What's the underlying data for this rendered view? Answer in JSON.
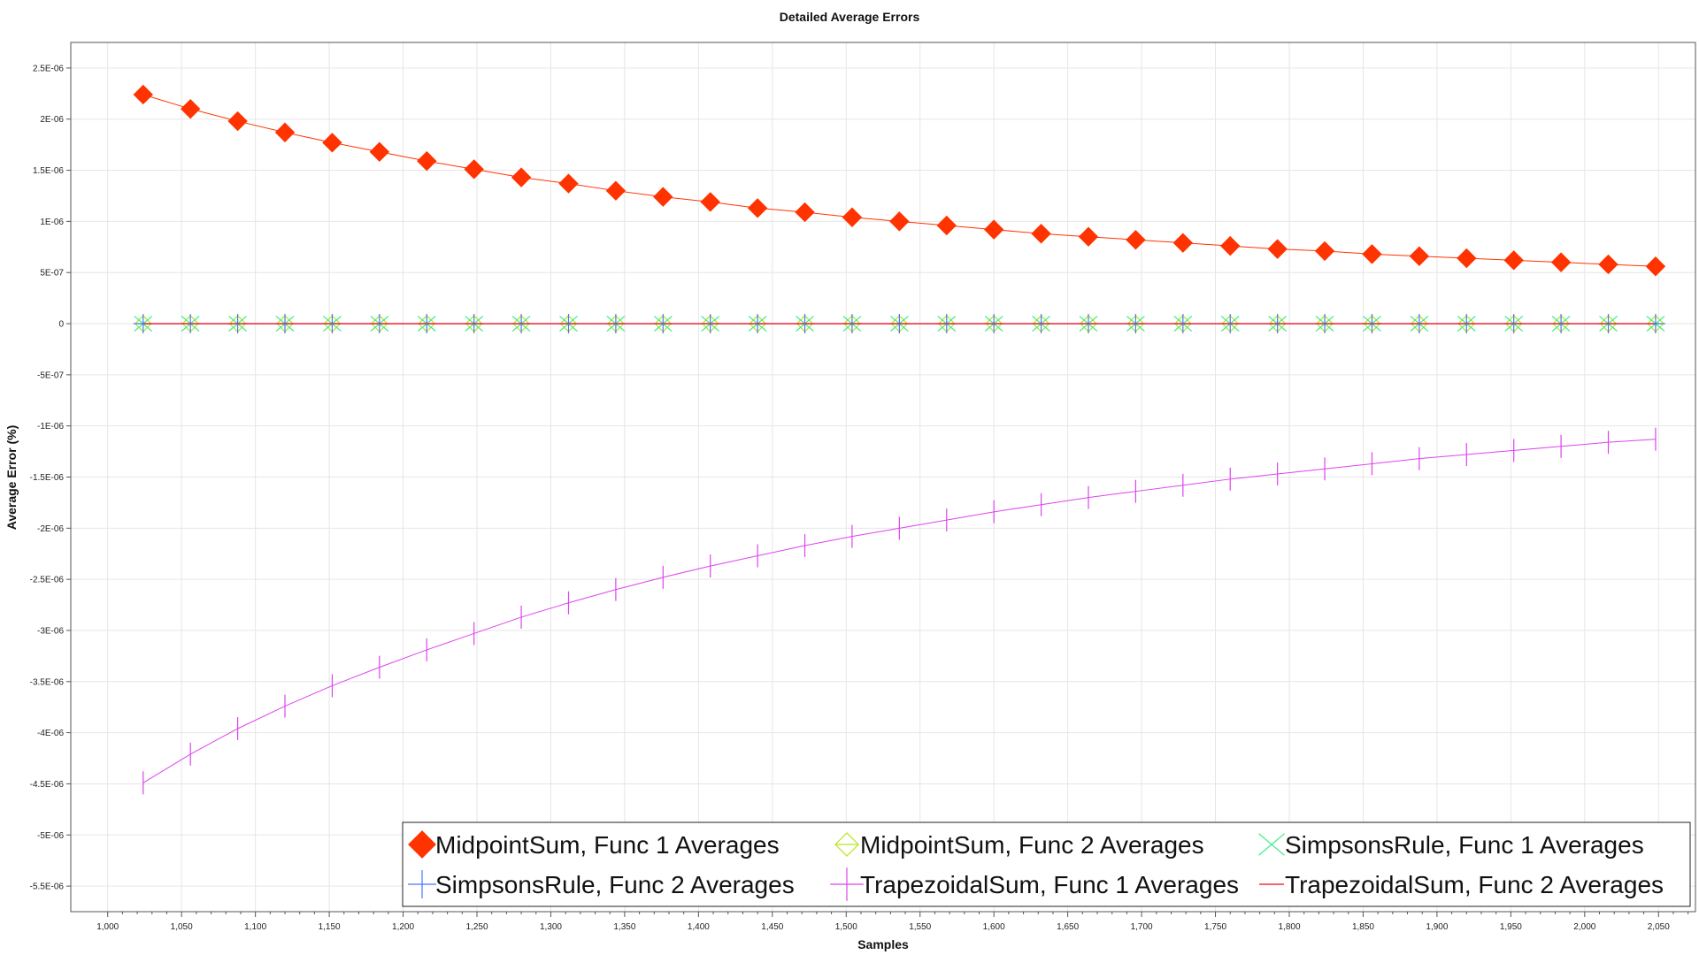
{
  "chart_data": {
    "type": "line",
    "title": "Detailed Average Errors",
    "xlabel": "Samples",
    "ylabel": "Average Error (%)",
    "xlim": [
      975,
      2075
    ],
    "ylim": [
      -5.75e-06,
      2.75e-06
    ],
    "grid": true,
    "legend_position": "bottom-right",
    "x_ticks": [
      1000,
      1050,
      1100,
      1150,
      1200,
      1250,
      1300,
      1350,
      1400,
      1450,
      1500,
      1550,
      1600,
      1650,
      1700,
      1750,
      1800,
      1850,
      1900,
      1950,
      2000,
      2050
    ],
    "x_tick_labels": [
      "1,000",
      "1,050",
      "1,100",
      "1,150",
      "1,200",
      "1,250",
      "1,300",
      "1,350",
      "1,400",
      "1,450",
      "1,500",
      "1,550",
      "1,600",
      "1,650",
      "1,700",
      "1,750",
      "1,800",
      "1,850",
      "1,900",
      "1,950",
      "2,000",
      "2,050"
    ],
    "y_ticks": [
      2.5e-06,
      2e-06,
      1.5e-06,
      1e-06,
      5e-07,
      0,
      -5e-07,
      -1e-06,
      -1.5e-06,
      -2e-06,
      -2.5e-06,
      -3e-06,
      -3.5e-06,
      -4e-06,
      -4.5e-06,
      -5e-06,
      -5.5e-06
    ],
    "y_tick_labels": [
      "2.5E-06",
      "2E-06",
      "1.5E-06",
      "1E-06",
      "5E-07",
      "0",
      "-5E-07",
      "-1E-06",
      "-1.5E-06",
      "-2E-06",
      "-2.5E-06",
      "-3E-06",
      "-3.5E-06",
      "-4E-06",
      "-4.5E-06",
      "-5E-06",
      "-5.5E-06"
    ],
    "x": [
      1024,
      1056,
      1088,
      1120,
      1152,
      1184,
      1216,
      1248,
      1280,
      1312,
      1344,
      1376,
      1408,
      1440,
      1472,
      1504,
      1536,
      1568,
      1600,
      1632,
      1664,
      1696,
      1728,
      1760,
      1792,
      1824,
      1856,
      1888,
      1920,
      1952,
      1984,
      2016,
      2048
    ],
    "series": [
      {
        "name": "MidpointSum, Func 1 Averages",
        "color": "#ff3300",
        "marker": "diamond-filled",
        "values": [
          2.24e-06,
          2.1e-06,
          1.98e-06,
          1.87e-06,
          1.77e-06,
          1.68e-06,
          1.59e-06,
          1.51e-06,
          1.43e-06,
          1.37e-06,
          1.3e-06,
          1.24e-06,
          1.19e-06,
          1.13e-06,
          1.09e-06,
          1.04e-06,
          1e-06,
          9.6e-07,
          9.2e-07,
          8.8e-07,
          8.5e-07,
          8.2e-07,
          7.9e-07,
          7.6e-07,
          7.3e-07,
          7.1e-07,
          6.8e-07,
          6.6e-07,
          6.4e-07,
          6.2e-07,
          6e-07,
          5.8e-07,
          5.6e-07
        ]
      },
      {
        "name": "MidpointSum, Func 2 Averages",
        "color": "#b5e61d",
        "marker": "diamond-open",
        "values": [
          0,
          0,
          0,
          0,
          0,
          0,
          0,
          0,
          0,
          0,
          0,
          0,
          0,
          0,
          0,
          0,
          0,
          0,
          0,
          0,
          0,
          0,
          0,
          0,
          0,
          0,
          0,
          0,
          0,
          0,
          0,
          0,
          0
        ]
      },
      {
        "name": "SimpsonsRule, Func 1 Averages",
        "color": "#33ee88",
        "marker": "x",
        "values": [
          0,
          0,
          0,
          0,
          0,
          0,
          0,
          0,
          0,
          0,
          0,
          0,
          0,
          0,
          0,
          0,
          0,
          0,
          0,
          0,
          0,
          0,
          0,
          0,
          0,
          0,
          0,
          0,
          0,
          0,
          0,
          0,
          0
        ]
      },
      {
        "name": "SimpsonsRule, Func 2 Averages",
        "color": "#4477ff",
        "marker": "plus",
        "values": [
          0,
          0,
          0,
          0,
          0,
          0,
          0,
          0,
          0,
          0,
          0,
          0,
          0,
          0,
          0,
          0,
          0,
          0,
          0,
          0,
          0,
          0,
          0,
          0,
          0,
          0,
          0,
          0,
          0,
          0,
          0,
          0,
          0
        ]
      },
      {
        "name": "TrapezoidalSum, Func 1 Averages",
        "color": "#dd44ee",
        "marker": "vbar",
        "values": [
          -4.49e-06,
          -4.21e-06,
          -3.96e-06,
          -3.74e-06,
          -3.54e-06,
          -3.36e-06,
          -3.19e-06,
          -3.03e-06,
          -2.87e-06,
          -2.73e-06,
          -2.6e-06,
          -2.48e-06,
          -2.37e-06,
          -2.27e-06,
          -2.17e-06,
          -2.08e-06,
          -2e-06,
          -1.92e-06,
          -1.84e-06,
          -1.77e-06,
          -1.7e-06,
          -1.64e-06,
          -1.58e-06,
          -1.52e-06,
          -1.47e-06,
          -1.42e-06,
          -1.37e-06,
          -1.32e-06,
          -1.28e-06,
          -1.24e-06,
          -1.2e-06,
          -1.16e-06,
          -1.13e-06
        ]
      },
      {
        "name": "TrapezoidalSum, Func 2 Averages",
        "color": "#ee3344",
        "marker": "line",
        "values": [
          0,
          0,
          0,
          0,
          0,
          0,
          0,
          0,
          0,
          0,
          0,
          0,
          0,
          0,
          0,
          0,
          0,
          0,
          0,
          0,
          0,
          0,
          0,
          0,
          0,
          0,
          0,
          0,
          0,
          0,
          0,
          0,
          0
        ]
      }
    ]
  }
}
